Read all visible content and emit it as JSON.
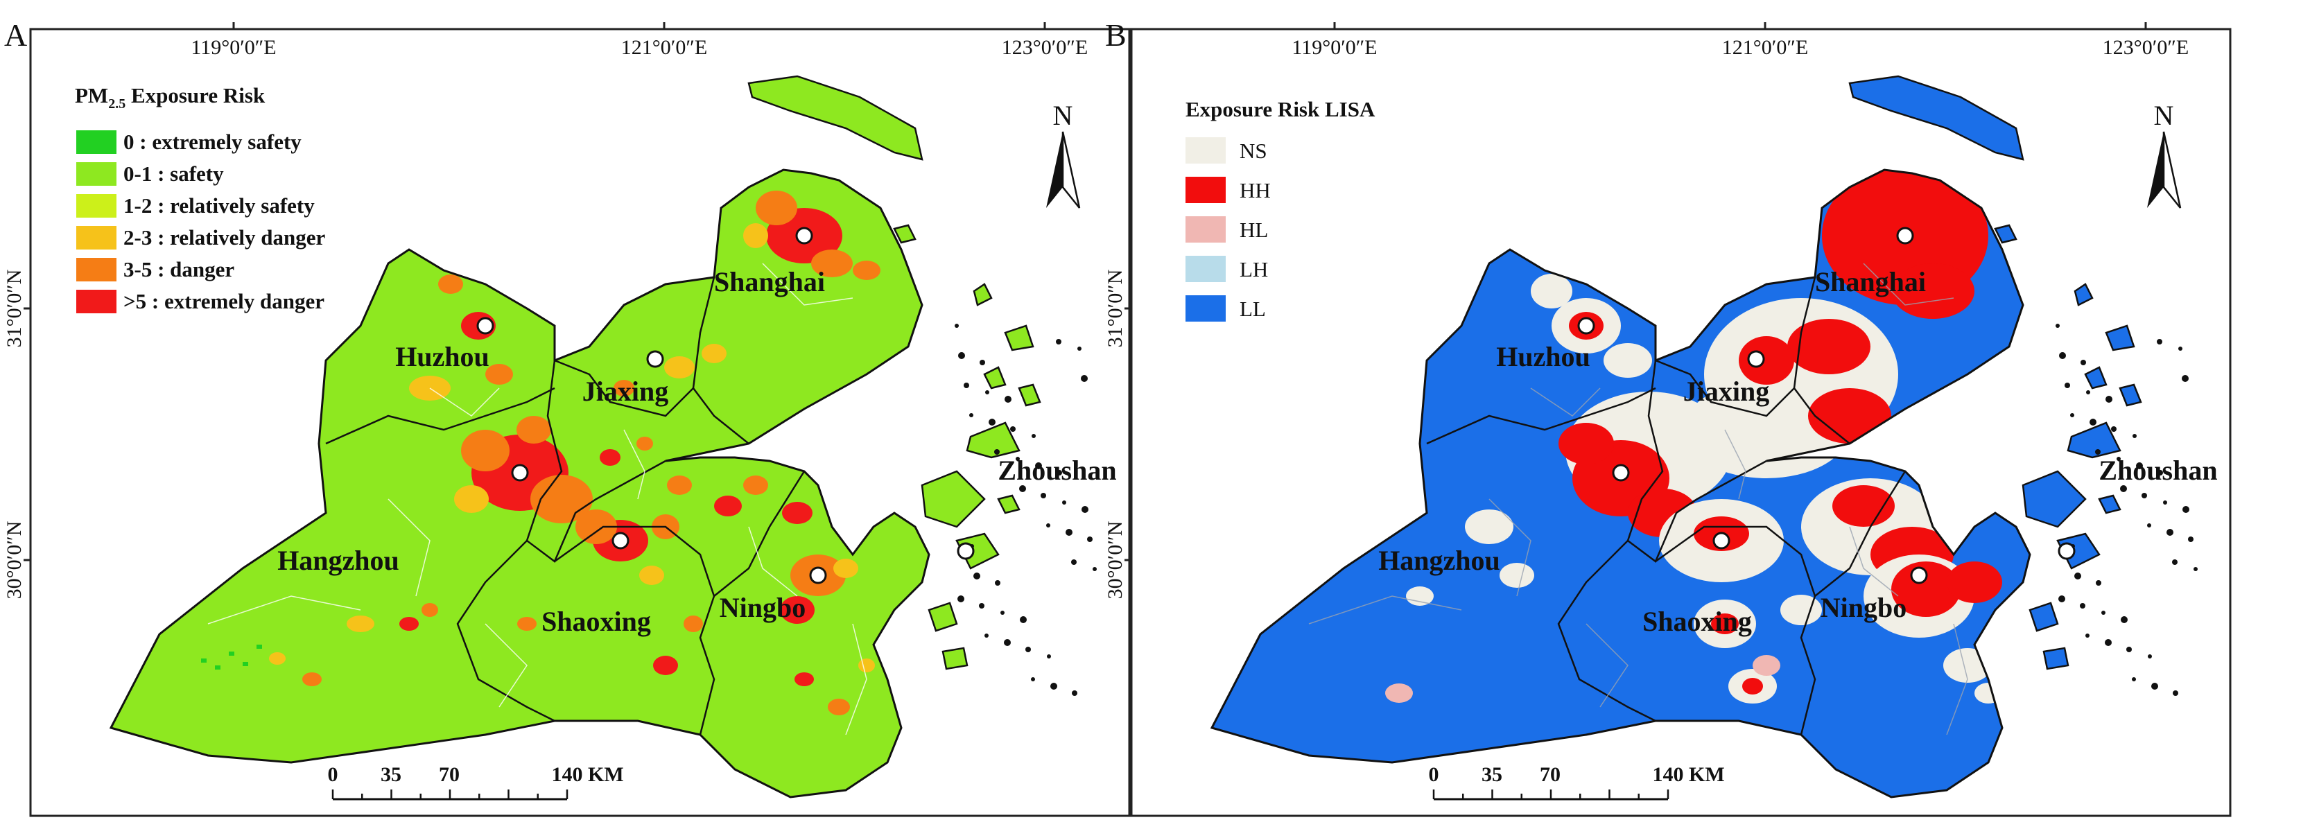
{
  "panels": [
    {
      "letter": "A",
      "lon_ticks": [
        "119°0′0″E",
        "121°0′0″E",
        "123°0′0″E"
      ],
      "lat_ticks": [
        "31°0′0″N",
        "30°0′0″N"
      ],
      "legend": {
        "title_main": "PM",
        "title_sub": "2.5",
        "title_rest": " Exposure Risk",
        "items": [
          {
            "label": "0 : extremely safety",
            "color": "#22d022"
          },
          {
            "label": "0-1 : safety",
            "color": "#8ee820"
          },
          {
            "label": "1-2 : relatively safety",
            "color": "#ccf01a"
          },
          {
            "label": "2-3 : relatively danger",
            "color": "#f6c21a"
          },
          {
            "label": "3-5 : danger",
            "color": "#f57d15"
          },
          {
            "label": ">5 : extremely danger",
            "color": "#f11a1a"
          }
        ]
      },
      "cities": [
        "Shanghai",
        "Huzhou",
        "Jiaxing",
        "Hangzhou",
        "Shaoxing",
        "Ningbo",
        "Zhoushan"
      ],
      "north": "N",
      "scale": {
        "ticks": [
          "0",
          "35",
          "70",
          "140"
        ],
        "unit": "KM"
      }
    },
    {
      "letter": "B",
      "lon_ticks": [
        "119°0′0″E",
        "121°0′0″E",
        "123°0′0″E"
      ],
      "lat_ticks": [
        "31°0′0″N",
        "30°0′0″N"
      ],
      "legend": {
        "title": "Exposure Risk LISA",
        "items": [
          {
            "label": "NS",
            "color": "#f1efe6"
          },
          {
            "label": "HH",
            "color": "#f20d0d"
          },
          {
            "label": "HL",
            "color": "#f0b7b3"
          },
          {
            "label": "LH",
            "color": "#b8dcea"
          },
          {
            "label": "LL",
            "color": "#1b6fe8"
          }
        ]
      },
      "cities": [
        "Shanghai",
        "Huzhou",
        "Jiaxing",
        "Hangzhou",
        "Shaoxing",
        "Ningbo",
        "Zhoushan"
      ],
      "north": "N",
      "scale": {
        "ticks": [
          "0",
          "35",
          "70",
          "140"
        ],
        "unit": "KM"
      }
    }
  ]
}
